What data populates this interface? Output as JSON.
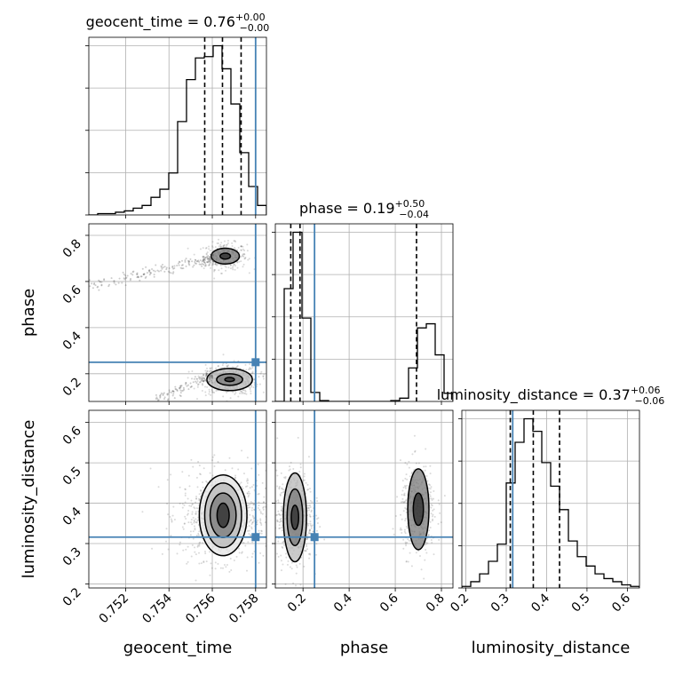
{
  "chart_data": {
    "type": "corner",
    "parameters": [
      "geocent_time",
      "phase",
      "luminosity_distance"
    ],
    "truth": {
      "geocent_time": 0.758,
      "phase": 0.25,
      "luminosity_distance": 0.316
    },
    "colors": {
      "truth": "#4682b4",
      "hist": "#000000",
      "grid": "#b0b0b0",
      "scatter": "#555555"
    },
    "grid": true,
    "titles": [
      {
        "param": "geocent_time",
        "prefix": "geocent_time = ",
        "median": "0.76",
        "plus": "+0.00",
        "minus": "−0.00"
      },
      {
        "param": "phase",
        "prefix": "phase = ",
        "median": "0.19",
        "plus": "+0.50",
        "minus": "−0.04"
      },
      {
        "param": "luminosity_distance",
        "prefix": "luminosity_distance = ",
        "median": "0.37",
        "plus": "+0.06",
        "minus": "−0.06"
      }
    ],
    "axes": {
      "geocent_time": {
        "label": "geocent_time",
        "range": [
          0.7503,
          0.7585
        ],
        "ticks": [
          0.752,
          0.754,
          0.756,
          0.758
        ],
        "tick_labels": [
          "0.752",
          "0.754",
          "0.756",
          "0.758"
        ]
      },
      "phase": {
        "label": "phase",
        "range": [
          0.08,
          0.85
        ],
        "ticks": [
          0.2,
          0.4,
          0.6,
          0.8
        ],
        "tick_labels": [
          "0.2",
          "0.4",
          "0.6",
          "0.8"
        ]
      },
      "luminosity_distance": {
        "label": "luminosity_distance",
        "range": [
          0.19,
          0.63
        ],
        "ticks": [
          0.2,
          0.3,
          0.4,
          0.5,
          0.6
        ],
        "tick_labels": [
          "0.2",
          "0.3",
          "0.4",
          "0.5",
          "0.6"
        ]
      }
    },
    "histograms": {
      "geocent_time": {
        "edges": [
          0.7503,
          0.75071,
          0.75112,
          0.75153,
          0.75194,
          0.75235,
          0.75276,
          0.75317,
          0.75358,
          0.75399,
          0.7544,
          0.75481,
          0.75522,
          0.75563,
          0.75604,
          0.75645,
          0.75686,
          0.75727,
          0.75768,
          0.75809,
          0.7585
        ],
        "counts": [
          0,
          1,
          1,
          2,
          3,
          5,
          7,
          13,
          19,
          31,
          69,
          100,
          116,
          117,
          125,
          108,
          82,
          46,
          21,
          7
        ],
        "quantiles": [
          0.75565,
          0.75647,
          0.75733
        ]
      },
      "phase": {
        "edges": [
          0.08,
          0.1185,
          0.157,
          0.1955,
          0.234,
          0.2725,
          0.311,
          0.3495,
          0.388,
          0.4265,
          0.465,
          0.5035,
          0.542,
          0.5805,
          0.619,
          0.6575,
          0.696,
          0.7345,
          0.773,
          0.8115,
          0.85
        ],
        "counts": [
          0,
          138,
          207,
          102,
          11,
          1,
          0,
          0,
          0,
          0,
          0,
          0,
          0,
          1,
          4,
          41,
          90,
          95,
          57,
          10
        ],
        "quantiles": [
          0.147,
          0.187,
          0.692
        ]
      },
      "luminosity_distance": {
        "edges": [
          0.19,
          0.212,
          0.234,
          0.256,
          0.278,
          0.3,
          0.322,
          0.344,
          0.366,
          0.388,
          0.41,
          0.432,
          0.454,
          0.476,
          0.498,
          0.52,
          0.542,
          0.564,
          0.586,
          0.608,
          0.63
        ],
        "counts": [
          1,
          4,
          9,
          17,
          28,
          67,
          93,
          108,
          100,
          80,
          65,
          50,
          30,
          20,
          14,
          9,
          6,
          4,
          2,
          1
        ],
        "quantiles": [
          0.31,
          0.367,
          0.432
        ]
      }
    },
    "pairs": [
      {
        "x": "geocent_time",
        "y": "phase",
        "modes": [
          {
            "center": [
              0.7566,
              0.71
            ],
            "spread": [
              0.00045,
              0.026
            ],
            "count": 90,
            "levels": [
              [
                0.00024,
                0.013
              ],
              [
                0.00065,
                0.034
              ]
            ]
          },
          {
            "center": [
              0.7568,
              0.175
            ],
            "spread": [
              0.0006,
              0.03
            ],
            "count": 120,
            "levels": [
              [
                0.00022,
                0.009
              ],
              [
                0.0006,
                0.025
              ],
              [
                0.00105,
                0.048
              ]
            ]
          }
        ],
        "tails": [
          {
            "from": [
              0.7561,
              0.7
            ],
            "to": [
              0.7503,
              0.58
            ],
            "count": 60
          },
          {
            "from": [
              0.756,
              0.19
            ],
            "to": [
              0.7534,
              0.09
            ],
            "count": 40
          }
        ]
      },
      {
        "x": "geocent_time",
        "y": "luminosity_distance",
        "modes": [
          {
            "center": [
              0.7565,
              0.37
            ],
            "spread": [
              0.0009,
              0.05
            ],
            "count": 220,
            "levels": [
              [
                0.00028,
                0.03
              ],
              [
                0.0006,
                0.055
              ],
              [
                0.00085,
                0.08
              ],
              [
                0.0011,
                0.1
              ]
            ]
          }
        ],
        "tails": []
      },
      {
        "x": "phase",
        "y": "luminosity_distance",
        "modes": [
          {
            "center": [
              0.165,
              0.365
            ],
            "spread": [
              0.035,
              0.05
            ],
            "count": 160,
            "levels": [
              [
                0.016,
                0.03
              ],
              [
                0.034,
                0.07
              ],
              [
                0.05,
                0.11
              ]
            ]
          },
          {
            "center": [
              0.7,
              0.385
            ],
            "spread": [
              0.035,
              0.05
            ],
            "count": 110,
            "levels": [
              [
                0.022,
                0.04
              ],
              [
                0.046,
                0.1
              ]
            ]
          }
        ],
        "tails": []
      }
    ]
  }
}
